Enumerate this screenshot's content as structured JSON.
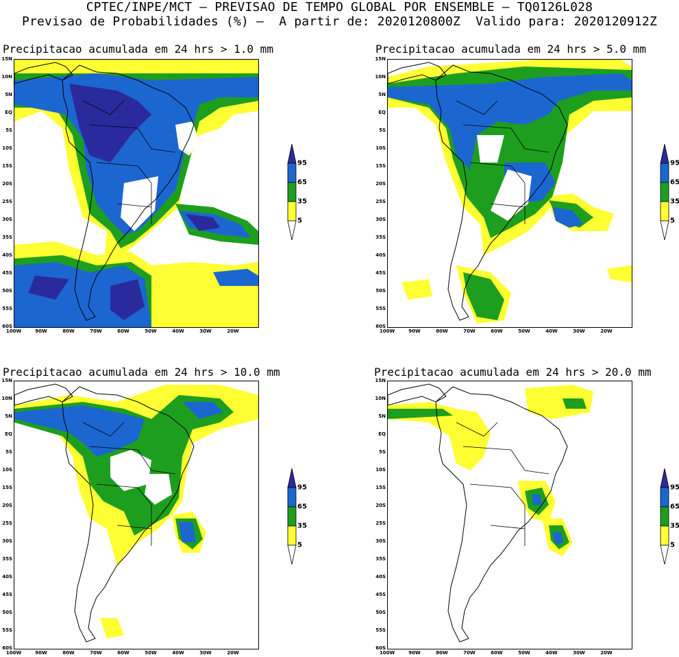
{
  "header": {
    "line1": "CPTEC/INPE/MCT — PREVISAO DE TEMPO GLOBAL POR ENSEMBLE — TQ0126L028",
    "line2": "Previsao de Probabilidades (%) —  A partir de: 2020120800Z  Valido para: 2020120912Z"
  },
  "axes": {
    "lat_labels": [
      "15N",
      "10N",
      "5N",
      "EQ",
      "5S",
      "10S",
      "15S",
      "20S",
      "25S",
      "30S",
      "35S",
      "40S",
      "45S",
      "50S",
      "55S",
      "60S"
    ],
    "lon_labels": [
      "100W",
      "90W",
      "80W",
      "70W",
      "60W",
      "50W",
      "40W",
      "30W",
      "20W"
    ]
  },
  "legend": {
    "levels": [
      "95",
      "65",
      "35",
      "5"
    ],
    "colors": {
      "yellow": "#ffff33",
      "green": "#1e9e1e",
      "blue": "#1c66d0",
      "navy": "#2b2a9c"
    }
  },
  "panels": [
    {
      "title": "Precipitacao acumulada em 24 hrs > 1.0 mm"
    },
    {
      "title": "Precipitacao acumulada em 24 hrs > 5.0 mm"
    },
    {
      "title": "Precipitacao acumulada em 24 hrs > 10.0 mm"
    },
    {
      "title": "Precipitacao acumulada em 24 hrs > 20.0 mm"
    }
  ]
}
